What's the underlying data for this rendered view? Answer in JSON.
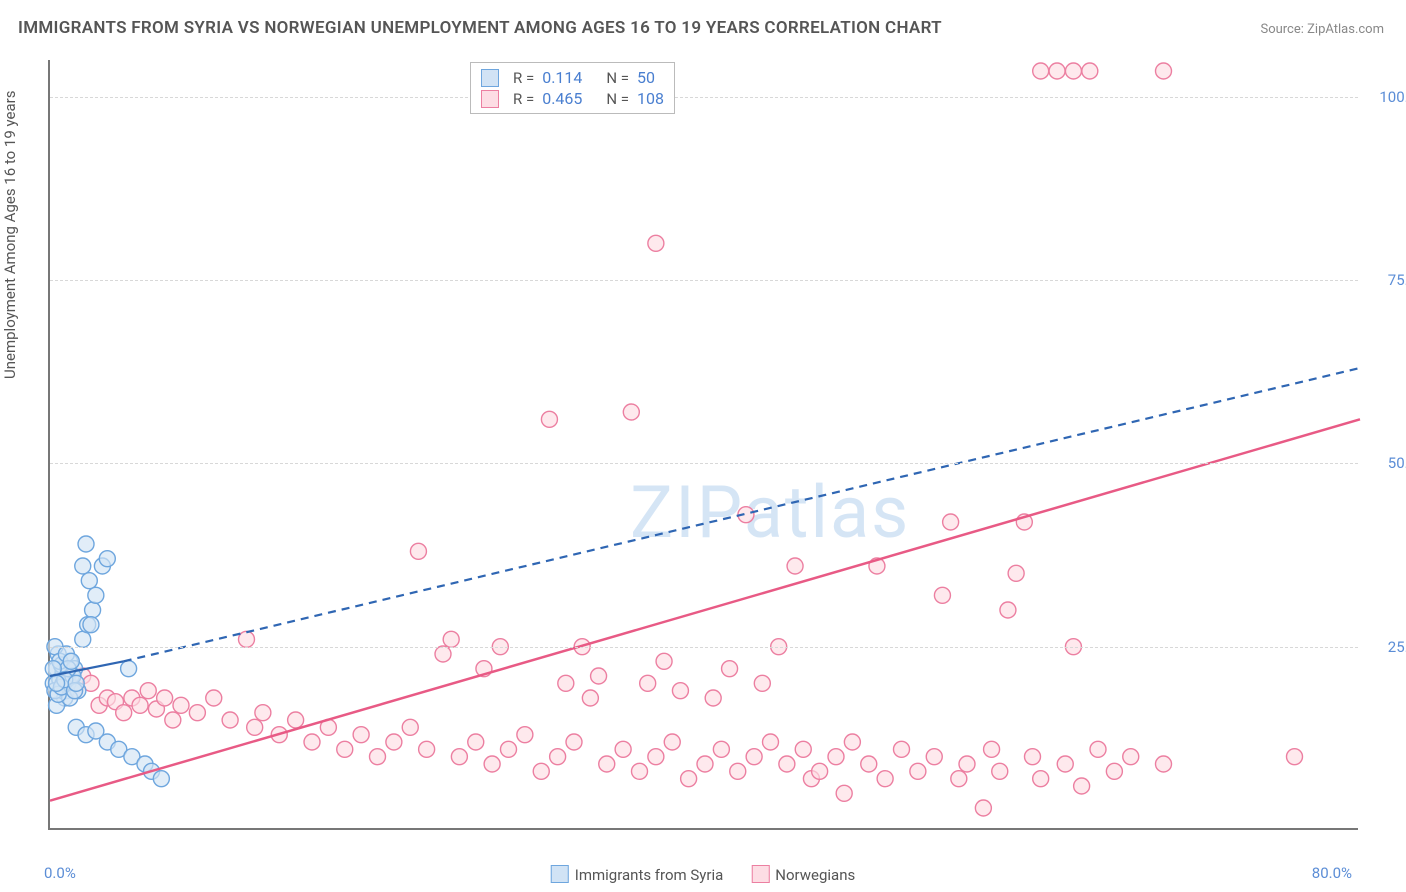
{
  "title": "IMMIGRANTS FROM SYRIA VS NORWEGIAN UNEMPLOYMENT AMONG AGES 16 TO 19 YEARS CORRELATION CHART",
  "source_label": "Source: ZipAtlas.com",
  "y_axis_title": "Unemployment Among Ages 16 to 19 years",
  "watermark": "ZIPatlas",
  "x_origin_label": "0.0%",
  "x_end_label": "80.0%",
  "chart": {
    "type": "scatter",
    "xlim": [
      0,
      80
    ],
    "ylim": [
      0,
      105
    ],
    "background_color": "#ffffff",
    "grid_color": "#d8d8d8",
    "axis_color": "#777777",
    "y_ticks": [
      {
        "value": 25,
        "label": "25.0%"
      },
      {
        "value": 50,
        "label": "50.0%"
      },
      {
        "value": 75,
        "label": "75.0%"
      },
      {
        "value": 100,
        "label": "100.0%"
      }
    ],
    "series": [
      {
        "name": "Immigrants from Syria",
        "marker_fill": "#d1e3f5",
        "marker_stroke": "#6ea6de",
        "marker_radius": 8,
        "fill_opacity": 0.65,
        "stats": {
          "R": "0.114",
          "N": "50"
        },
        "trend": {
          "x1": 0,
          "y1": 21,
          "x2": 4.5,
          "y2": 23,
          "style": "solid",
          "color": "#2f66b3",
          "width": 2.2,
          "ext_x2": 80,
          "ext_y2": 63,
          "ext_style": "dashed"
        },
        "points": [
          [
            0.2,
            20
          ],
          [
            0.4,
            22
          ],
          [
            0.6,
            20.5
          ],
          [
            0.8,
            21.5
          ],
          [
            1.0,
            19
          ],
          [
            1.2,
            23
          ],
          [
            0.5,
            24
          ],
          [
            0.7,
            22.5
          ],
          [
            0.3,
            25
          ],
          [
            1.1,
            20
          ],
          [
            1.3,
            21
          ],
          [
            0.9,
            18
          ],
          [
            1.5,
            22
          ],
          [
            1.7,
            19
          ],
          [
            0.4,
            17
          ],
          [
            0.6,
            23
          ],
          [
            0.8,
            20
          ],
          [
            1.0,
            24
          ],
          [
            1.2,
            18
          ],
          [
            1.4,
            21
          ],
          [
            0.3,
            19
          ],
          [
            0.5,
            18.5
          ],
          [
            0.7,
            19.5
          ],
          [
            1.1,
            22
          ],
          [
            1.3,
            23
          ],
          [
            0.2,
            22
          ],
          [
            0.9,
            20.5
          ],
          [
            1.5,
            19
          ],
          [
            1.6,
            20
          ],
          [
            0.4,
            20
          ],
          [
            2.0,
            26
          ],
          [
            2.3,
            28
          ],
          [
            2.6,
            30
          ],
          [
            2.4,
            34
          ],
          [
            2.8,
            32
          ],
          [
            3.2,
            36
          ],
          [
            3.5,
            37
          ],
          [
            2.0,
            36
          ],
          [
            2.2,
            39
          ],
          [
            2.5,
            28
          ],
          [
            1.6,
            14
          ],
          [
            2.2,
            13
          ],
          [
            2.8,
            13.5
          ],
          [
            3.5,
            12
          ],
          [
            4.2,
            11
          ],
          [
            5.0,
            10
          ],
          [
            5.8,
            9
          ],
          [
            6.2,
            8
          ],
          [
            6.8,
            7
          ],
          [
            4.8,
            22
          ]
        ]
      },
      {
        "name": "Norwegians",
        "marker_fill": "#fddde4",
        "marker_stroke": "#ec7fa1",
        "marker_radius": 8,
        "fill_opacity": 0.65,
        "stats": {
          "R": "0.465",
          "N": "108"
        },
        "trend": {
          "x1": 0,
          "y1": 4,
          "x2": 80,
          "y2": 56,
          "style": "solid",
          "color": "#e85a85",
          "width": 2.5
        },
        "points": [
          [
            1.0,
            20.5
          ],
          [
            1.5,
            19
          ],
          [
            2.0,
            21
          ],
          [
            2.5,
            20
          ],
          [
            3.0,
            17
          ],
          [
            3.5,
            18
          ],
          [
            4.0,
            17.5
          ],
          [
            4.5,
            16
          ],
          [
            5.0,
            18
          ],
          [
            5.5,
            17
          ],
          [
            6.0,
            19
          ],
          [
            6.5,
            16.5
          ],
          [
            7.0,
            18
          ],
          [
            7.5,
            15
          ],
          [
            8.0,
            17
          ],
          [
            9.0,
            16
          ],
          [
            10.0,
            18
          ],
          [
            11.0,
            15
          ],
          [
            12.0,
            26
          ],
          [
            12.5,
            14
          ],
          [
            13.0,
            16
          ],
          [
            14.0,
            13
          ],
          [
            15.0,
            15
          ],
          [
            16.0,
            12
          ],
          [
            17.0,
            14
          ],
          [
            18.0,
            11
          ],
          [
            19.0,
            13
          ],
          [
            20.0,
            10
          ],
          [
            21.0,
            12
          ],
          [
            22.0,
            14
          ],
          [
            22.5,
            38
          ],
          [
            23.0,
            11
          ],
          [
            24.0,
            24
          ],
          [
            24.5,
            26
          ],
          [
            25.0,
            10
          ],
          [
            26.0,
            12
          ],
          [
            26.5,
            22
          ],
          [
            27.0,
            9
          ],
          [
            27.5,
            25
          ],
          [
            28.0,
            11
          ],
          [
            29.0,
            13
          ],
          [
            30.0,
            8
          ],
          [
            30.5,
            56
          ],
          [
            31.0,
            10
          ],
          [
            31.5,
            20
          ],
          [
            32.0,
            12
          ],
          [
            32.5,
            25
          ],
          [
            33.0,
            18
          ],
          [
            33.5,
            21
          ],
          [
            34.0,
            9
          ],
          [
            35.0,
            11
          ],
          [
            35.5,
            57
          ],
          [
            36.0,
            8
          ],
          [
            36.5,
            20
          ],
          [
            37.0,
            10
          ],
          [
            37.5,
            23
          ],
          [
            37.0,
            80
          ],
          [
            38.0,
            12
          ],
          [
            38.5,
            19
          ],
          [
            39.0,
            7
          ],
          [
            40.0,
            9
          ],
          [
            40.5,
            18
          ],
          [
            41.0,
            11
          ],
          [
            41.5,
            22
          ],
          [
            42.0,
            8
          ],
          [
            42.5,
            43
          ],
          [
            43.0,
            10
          ],
          [
            43.5,
            20
          ],
          [
            44.0,
            12
          ],
          [
            44.5,
            25
          ],
          [
            45.0,
            9
          ],
          [
            45.5,
            36
          ],
          [
            46.0,
            11
          ],
          [
            46.5,
            7
          ],
          [
            47.0,
            8
          ],
          [
            48.0,
            10
          ],
          [
            48.5,
            5
          ],
          [
            49.0,
            12
          ],
          [
            50.0,
            9
          ],
          [
            50.5,
            36
          ],
          [
            51.0,
            7
          ],
          [
            52.0,
            11
          ],
          [
            53.0,
            8
          ],
          [
            54.0,
            10
          ],
          [
            54.5,
            32
          ],
          [
            55.0,
            42
          ],
          [
            55.5,
            7
          ],
          [
            56.0,
            9
          ],
          [
            57.0,
            3
          ],
          [
            57.5,
            11
          ],
          [
            58.0,
            8
          ],
          [
            58.5,
            30
          ],
          [
            59.0,
            35
          ],
          [
            59.5,
            42
          ],
          [
            60.0,
            10
          ],
          [
            60.5,
            7
          ],
          [
            62.0,
            9
          ],
          [
            62.5,
            25
          ],
          [
            63.0,
            6
          ],
          [
            64.0,
            11
          ],
          [
            65.0,
            8
          ],
          [
            66.0,
            10
          ],
          [
            68.0,
            9
          ],
          [
            60.5,
            103.5
          ],
          [
            61.5,
            103.5
          ],
          [
            62.5,
            103.5
          ],
          [
            63.5,
            103.5
          ],
          [
            68.0,
            103.5
          ],
          [
            76.0,
            10
          ]
        ]
      }
    ]
  },
  "bottom_legend": {
    "series1_label": "Immigrants from Syria",
    "series2_label": "Norwegians"
  }
}
